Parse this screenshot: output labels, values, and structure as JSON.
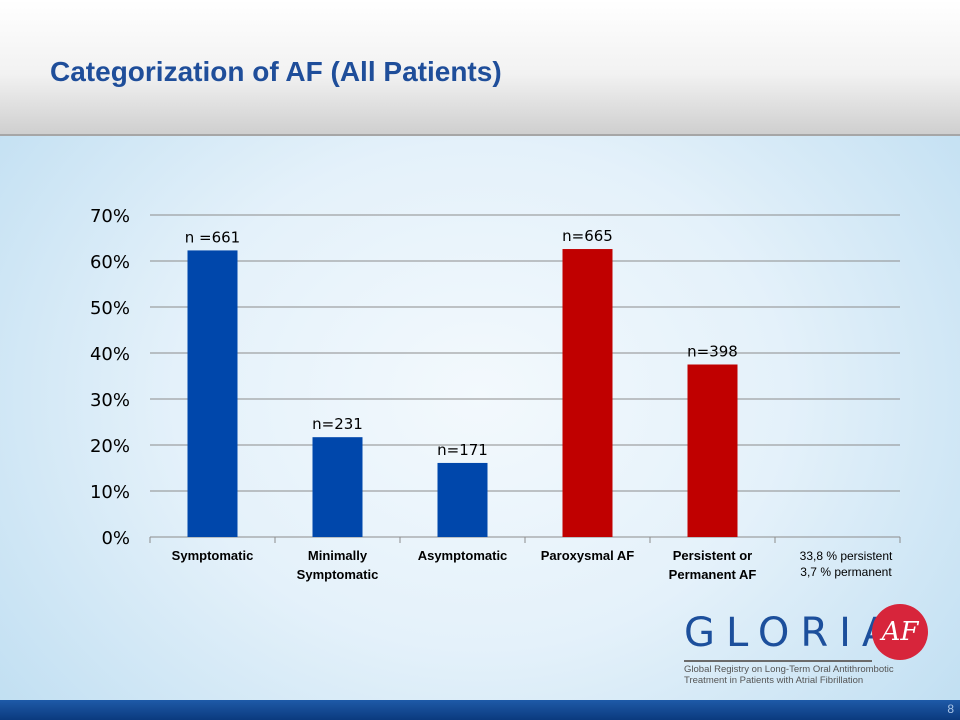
{
  "slide": {
    "title": "Categorization of AF (All Patients)",
    "page_number": "8"
  },
  "note": {
    "line1": "33,8 % persistent",
    "line2": "3,7 % permanent"
  },
  "logo": {
    "wordmark": "GLORIA",
    "badge": "AF",
    "subtitle_line1": "Global Registry on Long-Term Oral Antithrombotic",
    "subtitle_line2": "Treatment in Patients with Atrial Fibrillation"
  },
  "colors": {
    "blue": "#0047ab",
    "red": "#c00000",
    "title": "#1f4e9a",
    "grid": "#8c8c8c"
  },
  "chart_data": {
    "type": "bar",
    "title": "",
    "xlabel": "",
    "ylabel": "",
    "ylim": [
      0,
      70
    ],
    "yticks": [
      "0%",
      "10%",
      "20%",
      "30%",
      "40%",
      "50%",
      "60%",
      "70%"
    ],
    "grid": true,
    "categories": [
      "Symptomatic",
      "Minimally Symptomatic",
      "Asymptomatic",
      "Paroxysmal AF",
      "Persistent or Permanent AF",
      ""
    ],
    "values": [
      62.3,
      21.7,
      16.1,
      62.6,
      37.5,
      null
    ],
    "data_labels": [
      "n =661",
      "n=231",
      "n=171",
      "n=665",
      "n=398",
      ""
    ],
    "bar_colors": [
      "#0047ab",
      "#0047ab",
      "#0047ab",
      "#c00000",
      "#c00000",
      ""
    ]
  }
}
